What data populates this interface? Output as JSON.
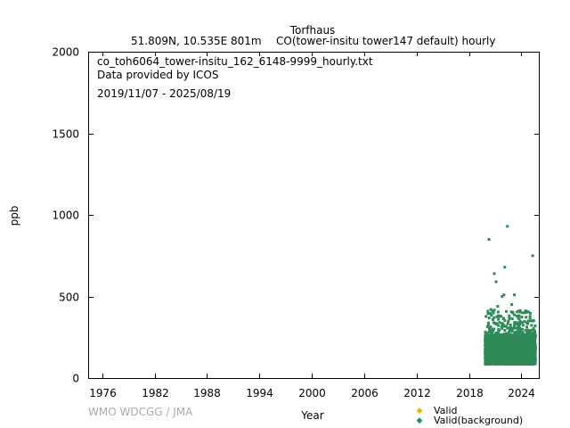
{
  "header": {
    "station": "Torfhaus",
    "location": "51.809N, 10.535E 801m",
    "species": "CO(tower-insitu tower147 default) hourly"
  },
  "annotations": {
    "filename": "co_toh6064_tower-insitu_162_6148-9999_hourly.txt",
    "provider": "Data provided by ICOS",
    "period": "2019/11/07 - 2025/08/19"
  },
  "footer": {
    "credit": "WMO WDCGG / JMA"
  },
  "colors": {
    "valid": "#e6b800",
    "background": "#2e8b57"
  },
  "chart_data": {
    "type": "scatter",
    "xlabel": "Year",
    "ylabel": "ppb",
    "xlim": [
      1974.5,
      2026.0
    ],
    "ylim": [
      0,
      2000
    ],
    "x_ticks": [
      1976,
      1982,
      1988,
      1994,
      2000,
      2006,
      2012,
      2018,
      2024
    ],
    "y_ticks": [
      0,
      500,
      1000,
      1500,
      2000
    ],
    "legend_position": "bottom-right",
    "series": [
      {
        "name": "Valid",
        "color": "#e6b800",
        "points": []
      },
      {
        "name": "Valid(background)",
        "color": "#2e8b57",
        "baseline_range": [
          85,
          260
        ],
        "x_range": [
          2019.85,
          2025.63
        ],
        "outliers": [
          [
            2020.3,
            850
          ],
          [
            2020.9,
            640
          ],
          [
            2021.1,
            590
          ],
          [
            2022.1,
            680
          ],
          [
            2022.4,
            930
          ],
          [
            2023.2,
            510
          ],
          [
            2021.8,
            500
          ],
          [
            2022.0,
            510
          ],
          [
            2020.5,
            420
          ],
          [
            2021.3,
            440
          ],
          [
            2022.9,
            450
          ],
          [
            2023.5,
            380
          ],
          [
            2024.4,
            400
          ],
          [
            2025.3,
            750
          ],
          [
            2024.8,
            350
          ],
          [
            2021.6,
            380
          ]
        ]
      }
    ]
  }
}
